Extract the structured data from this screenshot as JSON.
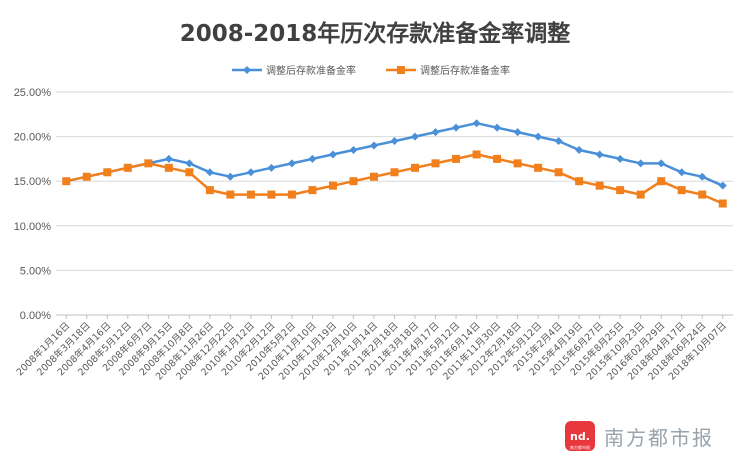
{
  "chart_data": {
    "type": "line",
    "title": "2008-2018年历次存款准备金率调整",
    "categories": [
      "2008年1月16日",
      "2008年3月18日",
      "2008年4月16日",
      "2008年5月12日",
      "2008年6月7日",
      "2008年9月15日",
      "2008年10月8日",
      "2008年11月26日",
      "2008年12月22日",
      "2010年1月12日",
      "2010年2月12日",
      "2010年5月2日",
      "2010年11月10日",
      "2010年11月19日",
      "2010年12月10日",
      "2011年1月14日",
      "2011年2月18日",
      "2011年3月18日",
      "2011年4月17日",
      "2011年5月12日",
      "2011年6月14日",
      "2011年11月30日",
      "2012年2月18日",
      "2012年5月12日",
      "2015年2月4日",
      "2015年4月19日",
      "2015年6月27日",
      "2015年8月25日",
      "2015年10月23日",
      "2016年02月29日",
      "2018年04月17日",
      "2018年06月24日",
      "2018年10月07日"
    ],
    "series": [
      {
        "name": "调整后存款准备金率",
        "color": "#4a90d9",
        "marker": "diamond",
        "values": [
          15.0,
          15.5,
          16.0,
          16.5,
          17.0,
          17.5,
          17.0,
          16.0,
          15.5,
          16.0,
          16.5,
          17.0,
          17.5,
          18.0,
          18.5,
          19.0,
          19.5,
          20.0,
          20.5,
          21.0,
          21.5,
          21.0,
          20.5,
          20.0,
          19.5,
          18.5,
          18.0,
          17.5,
          17.0,
          17.0,
          16.0,
          15.5,
          14.5
        ]
      },
      {
        "name": "调整后存款准备金率",
        "color": "#f07f1c",
        "marker": "square",
        "values": [
          15.0,
          15.5,
          16.0,
          16.5,
          17.0,
          16.5,
          16.0,
          14.0,
          13.5,
          13.5,
          13.5,
          13.5,
          14.0,
          14.5,
          15.0,
          15.5,
          16.0,
          16.5,
          17.0,
          17.5,
          18.0,
          17.5,
          17.0,
          16.5,
          16.0,
          15.0,
          14.5,
          14.0,
          13.5,
          15.0,
          14.0,
          13.5,
          12.5
        ]
      }
    ],
    "ylim": [
      0,
      25
    ],
    "yticks": [
      "0.00%",
      "5.00%",
      "10.00%",
      "15.00%",
      "20.00%",
      "25.00%"
    ],
    "grid": true,
    "legend": "top"
  },
  "watermark": {
    "logo_text": "nd.",
    "logo_sub": "南方都市报",
    "text": "南方都市报"
  }
}
